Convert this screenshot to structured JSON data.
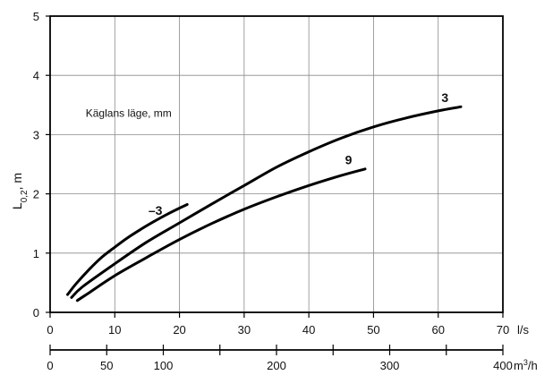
{
  "chart_data": {
    "type": "line",
    "ylabel": {
      "main": "L",
      "sub": "0,2",
      "rest": ", m"
    },
    "annotation": "Käglans läge, mm",
    "x_primary": {
      "ticks": [
        0,
        10,
        20,
        30,
        40,
        50,
        60,
        70
      ],
      "range": [
        0,
        70
      ],
      "unit": "l/s"
    },
    "x_secondary": {
      "ticks": [
        0,
        50,
        100,
        150,
        200,
        250,
        300,
        350,
        400
      ],
      "labels": [
        "0",
        "50",
        "100",
        "",
        "200",
        "",
        "300",
        "",
        "400"
      ],
      "range": [
        0,
        400
      ],
      "unit_main": "m",
      "unit_sup": "3",
      "unit_rest": "/h"
    },
    "y_axis": {
      "ticks": [
        0,
        1,
        2,
        3,
        4,
        5
      ],
      "range": [
        0,
        5
      ]
    },
    "grid": true,
    "series": [
      {
        "name": "–3",
        "label_at": [
          15.2,
          1.65
        ],
        "points": [
          [
            2.7,
            0.3
          ],
          [
            4,
            0.48
          ],
          [
            6,
            0.72
          ],
          [
            8,
            0.93
          ],
          [
            10,
            1.1
          ],
          [
            12,
            1.26
          ],
          [
            14,
            1.4
          ],
          [
            16,
            1.53
          ],
          [
            18,
            1.65
          ],
          [
            20,
            1.76
          ],
          [
            21.2,
            1.82
          ]
        ]
      },
      {
        "name": "3",
        "label_at": [
          60.5,
          3.55
        ],
        "points": [
          [
            3.3,
            0.25
          ],
          [
            5,
            0.43
          ],
          [
            10,
            0.82
          ],
          [
            15,
            1.19
          ],
          [
            20,
            1.51
          ],
          [
            25,
            1.83
          ],
          [
            30,
            2.14
          ],
          [
            35,
            2.45
          ],
          [
            40,
            2.71
          ],
          [
            45,
            2.94
          ],
          [
            50,
            3.13
          ],
          [
            55,
            3.28
          ],
          [
            60,
            3.4
          ],
          [
            63.5,
            3.47
          ]
        ]
      },
      {
        "name": "9",
        "label_at": [
          45.6,
          2.5
        ],
        "points": [
          [
            4.2,
            0.2
          ],
          [
            6,
            0.33
          ],
          [
            10,
            0.62
          ],
          [
            15,
            0.93
          ],
          [
            20,
            1.23
          ],
          [
            25,
            1.5
          ],
          [
            30,
            1.74
          ],
          [
            35,
            1.95
          ],
          [
            40,
            2.14
          ],
          [
            45,
            2.31
          ],
          [
            48.7,
            2.42
          ]
        ]
      }
    ]
  }
}
